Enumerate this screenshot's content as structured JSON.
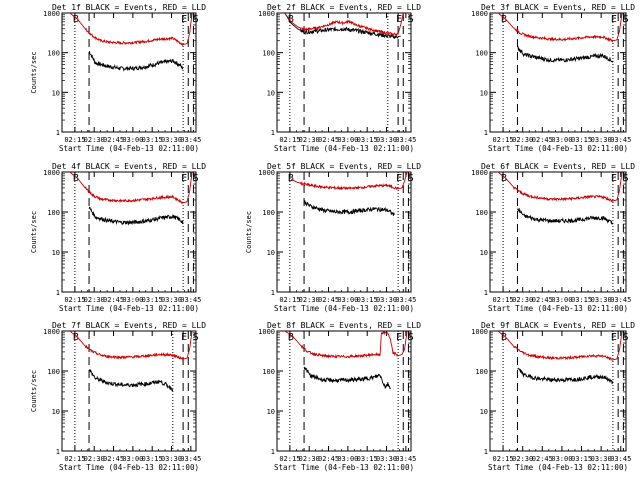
{
  "figure": {
    "common_xlabel": "Start Time (04-Feb-13 02:11:00)",
    "common_ylabel": "Counts/sec",
    "x_tick_labels": [
      "02:15",
      "02:30",
      "02:45",
      "03:00",
      "03:15",
      "03:30",
      "03:45"
    ],
    "y_tick_labels": [
      "1",
      "10",
      "100",
      "1000"
    ],
    "series_colors": {
      "events": "#000000",
      "lld": "#cc0000"
    }
  },
  "chart_data": [
    {
      "type": "line",
      "title": "Det 1f BLACK = Events, RED = LLD",
      "xlabel": "Start Time (04-Feb-13 02:11:00)",
      "ylabel": "Counts/sec",
      "xlim_minutes": [
        -6,
        98
      ],
      "ylim": [
        1,
        1000
      ],
      "yscale": "log",
      "markers": [
        {
          "label": "B",
          "minute": 4
        },
        {
          "label": "E",
          "minute": 88
        },
        {
          "label": "S",
          "minute": 97
        }
      ],
      "vlines": [
        {
          "minute": 4,
          "style": "dotted"
        },
        {
          "minute": 15,
          "style": "dashed"
        },
        {
          "minute": 88,
          "style": "dotted"
        },
        {
          "minute": 92,
          "style": "dashed"
        },
        {
          "minute": 96,
          "style": "dashed"
        }
      ],
      "series": [
        {
          "name": "Events",
          "x_minutes": [
            15,
            20,
            30,
            40,
            50,
            60,
            70,
            80,
            85,
            88
          ],
          "values": [
            110,
            55,
            45,
            40,
            40,
            45,
            55,
            62,
            50,
            40
          ]
        },
        {
          "name": "LLD",
          "x_minutes": [
            0,
            6,
            12,
            18,
            24,
            30,
            40,
            50,
            60,
            70,
            80,
            88,
            91,
            93,
            95
          ],
          "values": [
            1000,
            700,
            400,
            260,
            200,
            185,
            175,
            180,
            195,
            220,
            230,
            160,
            170,
            300,
            1000
          ]
        }
      ]
    },
    {
      "type": "line",
      "title": "Det 2f BLACK = Events, RED = LLD",
      "xlabel": "Start Time (04-Feb-13 02:11:00)",
      "ylabel": "",
      "xlim_minutes": [
        -6,
        98
      ],
      "ylim": [
        1,
        1000
      ],
      "yscale": "log",
      "markers": [
        {
          "label": "B",
          "minute": 4
        },
        {
          "label": "E",
          "minute": 88
        },
        {
          "label": "S",
          "minute": 97
        }
      ],
      "vlines": [
        {
          "minute": 4,
          "style": "dotted"
        },
        {
          "minute": 15,
          "style": "dashed"
        },
        {
          "minute": 80,
          "style": "dotted"
        },
        {
          "minute": 88,
          "style": "dashed"
        },
        {
          "minute": 92,
          "style": "dashed"
        }
      ],
      "series": [
        {
          "name": "Events",
          "x_minutes": [
            0,
            5,
            10,
            15,
            25,
            35,
            45,
            55,
            65,
            75,
            85,
            90
          ],
          "values": [
            1000,
            550,
            400,
            330,
            350,
            380,
            400,
            360,
            320,
            280,
            250,
            260
          ]
        },
        {
          "name": "LLD",
          "x_minutes": [
            0,
            5,
            10,
            15,
            25,
            35,
            40,
            45,
            50,
            55,
            65,
            75,
            85,
            88,
            90,
            92
          ],
          "values": [
            1000,
            600,
            450,
            380,
            420,
            520,
            600,
            560,
            620,
            500,
            400,
            330,
            290,
            300,
            500,
            1000
          ]
        }
      ]
    },
    {
      "type": "line",
      "title": "Det 3f BLACK = Events, RED = LLD",
      "xlabel": "Start Time (04-Feb-13 02:11:00)",
      "ylabel": "",
      "xlim_minutes": [
        -6,
        98
      ],
      "ylim": [
        1,
        1000
      ],
      "yscale": "log",
      "markers": [
        {
          "label": "B",
          "minute": 4
        },
        {
          "label": "E",
          "minute": 88
        },
        {
          "label": "S",
          "minute": 97
        }
      ],
      "vlines": [
        {
          "minute": 4,
          "style": "dotted"
        },
        {
          "minute": 15,
          "style": "dashed"
        },
        {
          "minute": 88,
          "style": "dotted"
        },
        {
          "minute": 92,
          "style": "dashed"
        },
        {
          "minute": 96,
          "style": "dashed"
        }
      ],
      "series": [
        {
          "name": "Events",
          "x_minutes": [
            15,
            20,
            30,
            40,
            50,
            60,
            70,
            80,
            85,
            88
          ],
          "values": [
            140,
            90,
            75,
            65,
            65,
            70,
            78,
            85,
            70,
            60
          ]
        },
        {
          "name": "LLD",
          "x_minutes": [
            0,
            6,
            12,
            18,
            24,
            30,
            40,
            50,
            60,
            70,
            80,
            88,
            91,
            93,
            95
          ],
          "values": [
            1000,
            700,
            420,
            300,
            260,
            240,
            220,
            215,
            230,
            250,
            250,
            200,
            210,
            350,
            1000
          ]
        }
      ]
    },
    {
      "type": "line",
      "title": "Det 4f BLACK = Events, RED = LLD",
      "xlabel": "Start Time (04-Feb-13 02:11:00)",
      "ylabel": "Counts/sec",
      "xlim_minutes": [
        -6,
        98
      ],
      "ylim": [
        1,
        1000
      ],
      "yscale": "log",
      "markers": [
        {
          "label": "B",
          "minute": 4
        },
        {
          "label": "E",
          "minute": 88
        },
        {
          "label": "S",
          "minute": 97
        }
      ],
      "vlines": [
        {
          "minute": 4,
          "style": "dotted"
        },
        {
          "minute": 15,
          "style": "dashed"
        },
        {
          "minute": 88,
          "style": "dotted"
        },
        {
          "minute": 92,
          "style": "dashed"
        },
        {
          "minute": 96,
          "style": "dashed"
        }
      ],
      "series": [
        {
          "name": "Events",
          "x_minutes": [
            15,
            20,
            30,
            40,
            50,
            60,
            70,
            80,
            85,
            88
          ],
          "values": [
            130,
            75,
            60,
            55,
            55,
            60,
            70,
            78,
            65,
            55
          ]
        },
        {
          "name": "LLD",
          "x_minutes": [
            0,
            6,
            12,
            18,
            24,
            30,
            40,
            50,
            60,
            70,
            80,
            88,
            91,
            93,
            95
          ],
          "values": [
            1000,
            700,
            400,
            260,
            210,
            200,
            190,
            195,
            210,
            230,
            240,
            170,
            180,
            320,
            1000
          ]
        }
      ]
    },
    {
      "type": "line",
      "title": "Det 5f BLACK = Events, RED = LLD",
      "xlabel": "Start Time (04-Feb-13 02:11:00)",
      "ylabel": "Counts/sec",
      "xlim_minutes": [
        -6,
        98
      ],
      "ylim": [
        1,
        1000
      ],
      "yscale": "log",
      "markers": [
        {
          "label": "B",
          "minute": 4
        },
        {
          "label": "E",
          "minute": 88
        },
        {
          "label": "S",
          "minute": 97
        }
      ],
      "vlines": [
        {
          "minute": 4,
          "style": "dotted"
        },
        {
          "minute": 15,
          "style": "dashed"
        },
        {
          "minute": 88,
          "style": "dotted"
        },
        {
          "minute": 92,
          "style": "dashed"
        },
        {
          "minute": 96,
          "style": "dashed"
        }
      ],
      "series": [
        {
          "name": "Events",
          "x_minutes": [
            15,
            20,
            30,
            40,
            50,
            60,
            70,
            80,
            85
          ],
          "values": [
            180,
            140,
            110,
            100,
            100,
            110,
            120,
            110,
            85
          ]
        },
        {
          "name": "LLD",
          "x_minutes": [
            5,
            10,
            15,
            20,
            30,
            40,
            50,
            60,
            70,
            80,
            88,
            91,
            93,
            95
          ],
          "values": [
            650,
            550,
            500,
            460,
            420,
            400,
            390,
            410,
            450,
            460,
            380,
            400,
            600,
            1000
          ]
        }
      ]
    },
    {
      "type": "line",
      "title": "Det 6f BLACK = Events, RED = LLD",
      "xlabel": "Start Time (04-Feb-13 02:11:00)",
      "ylabel": "",
      "xlim_minutes": [
        -6,
        98
      ],
      "ylim": [
        1,
        1000
      ],
      "yscale": "log",
      "markers": [
        {
          "label": "B",
          "minute": 4
        },
        {
          "label": "E",
          "minute": 88
        },
        {
          "label": "S",
          "minute": 97
        }
      ],
      "vlines": [
        {
          "minute": 4,
          "style": "dotted"
        },
        {
          "minute": 15,
          "style": "dashed"
        },
        {
          "minute": 88,
          "style": "dotted"
        },
        {
          "minute": 92,
          "style": "dashed"
        },
        {
          "minute": 96,
          "style": "dashed"
        }
      ],
      "series": [
        {
          "name": "Events",
          "x_minutes": [
            15,
            20,
            30,
            40,
            50,
            60,
            70,
            80,
            85,
            88
          ],
          "values": [
            120,
            80,
            65,
            60,
            60,
            62,
            70,
            72,
            60,
            50
          ]
        },
        {
          "name": "LLD",
          "x_minutes": [
            0,
            6,
            12,
            18,
            24,
            30,
            40,
            50,
            60,
            70,
            80,
            88,
            91,
            93,
            95
          ],
          "values": [
            1000,
            700,
            420,
            300,
            250,
            230,
            210,
            210,
            220,
            240,
            240,
            190,
            200,
            340,
            1000
          ]
        }
      ]
    },
    {
      "type": "line",
      "title": "Det 7f BLACK = Events, RED = LLD",
      "xlabel": "Start Time (04-Feb-13 02:11:00)",
      "ylabel": "Counts/sec",
      "xlim_minutes": [
        -6,
        98
      ],
      "ylim": [
        1,
        1000
      ],
      "yscale": "log",
      "markers": [
        {
          "label": "B",
          "minute": 4
        },
        {
          "label": "E",
          "minute": 88
        },
        {
          "label": "S",
          "minute": 97
        }
      ],
      "vlines": [
        {
          "minute": 4,
          "style": "dotted"
        },
        {
          "minute": 15,
          "style": "dashed"
        },
        {
          "minute": 80,
          "style": "dotted"
        },
        {
          "minute": 88,
          "style": "dashed"
        },
        {
          "minute": 92,
          "style": "dashed"
        }
      ],
      "series": [
        {
          "name": "Events",
          "x_minutes": [
            15,
            20,
            30,
            40,
            50,
            60,
            70,
            75,
            80
          ],
          "values": [
            110,
            65,
            50,
            45,
            45,
            48,
            55,
            45,
            35
          ]
        },
        {
          "name": "LLD",
          "x_minutes": [
            0,
            6,
            12,
            18,
            24,
            30,
            40,
            50,
            60,
            70,
            80,
            88,
            91,
            93,
            95
          ],
          "values": [
            1000,
            700,
            420,
            300,
            250,
            230,
            220,
            225,
            240,
            260,
            250,
            200,
            210,
            350,
            1000
          ]
        }
      ]
    },
    {
      "type": "line",
      "title": "Det 8f BLACK = Events, RED = LLD",
      "xlabel": "Start Time (04-Feb-13 02:11:00)",
      "ylabel": "",
      "xlim_minutes": [
        -6,
        98
      ],
      "ylim": [
        1,
        1000
      ],
      "yscale": "log",
      "markers": [
        {
          "label": "B",
          "minute": 4
        },
        {
          "label": "E",
          "minute": 88
        },
        {
          "label": "S",
          "minute": 97
        }
      ],
      "vlines": [
        {
          "minute": 4,
          "style": "dotted"
        },
        {
          "minute": 15,
          "style": "dashed"
        },
        {
          "minute": 88,
          "style": "dotted"
        },
        {
          "minute": 92,
          "style": "dashed"
        },
        {
          "minute": 96,
          "style": "dashed"
        }
      ],
      "series": [
        {
          "name": "Events",
          "x_minutes": [
            15,
            20,
            30,
            40,
            50,
            60,
            70,
            74,
            76,
            78,
            80,
            82
          ],
          "values": [
            130,
            75,
            60,
            58,
            60,
            62,
            70,
            80,
            55,
            40,
            48,
            38
          ]
        },
        {
          "name": "LLD",
          "x_minutes": [
            0,
            6,
            12,
            18,
            24,
            30,
            40,
            50,
            60,
            70,
            74,
            75,
            76,
            78,
            80,
            82,
            84,
            86,
            88,
            91,
            93,
            95
          ],
          "values": [
            1000,
            750,
            450,
            300,
            260,
            240,
            230,
            230,
            240,
            260,
            250,
            900,
            900,
            900,
            900,
            600,
            280,
            270,
            240,
            260,
            350,
            1000
          ]
        }
      ]
    },
    {
      "type": "line",
      "title": "Det 9f BLACK = Events, RED = LLD",
      "xlabel": "Start Time (04-Feb-13 02:11:00)",
      "ylabel": "",
      "xlim_minutes": [
        -6,
        98
      ],
      "ylim": [
        1,
        1000
      ],
      "yscale": "log",
      "markers": [
        {
          "label": "B",
          "minute": 4
        },
        {
          "label": "E",
          "minute": 88
        },
        {
          "label": "S",
          "minute": 97
        }
      ],
      "vlines": [
        {
          "minute": 4,
          "style": "dotted"
        },
        {
          "minute": 15,
          "style": "dashed"
        },
        {
          "minute": 88,
          "style": "dotted"
        },
        {
          "minute": 92,
          "style": "dashed"
        },
        {
          "minute": 96,
          "style": "dashed"
        }
      ],
      "series": [
        {
          "name": "Events",
          "x_minutes": [
            15,
            20,
            30,
            40,
            50,
            60,
            70,
            80,
            85,
            88
          ],
          "values": [
            120,
            80,
            65,
            60,
            60,
            62,
            70,
            72,
            60,
            50
          ]
        },
        {
          "name": "LLD",
          "x_minutes": [
            0,
            6,
            12,
            18,
            24,
            30,
            40,
            50,
            60,
            70,
            80,
            88,
            91,
            93,
            95
          ],
          "values": [
            1000,
            700,
            420,
            300,
            250,
            230,
            210,
            210,
            220,
            240,
            240,
            190,
            200,
            340,
            1000
          ]
        }
      ]
    }
  ]
}
